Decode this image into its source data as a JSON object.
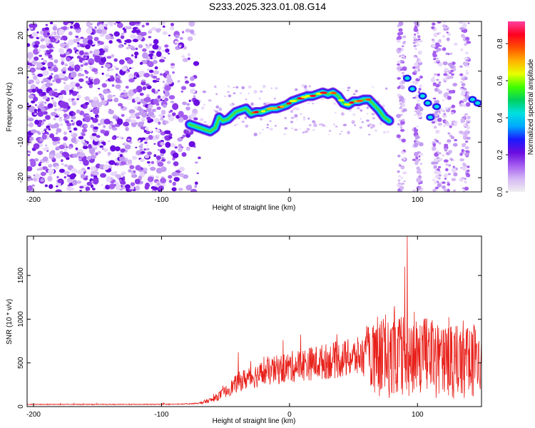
{
  "title": "S233.2025.323.01.08.G14",
  "chart_data": [
    {
      "type": "heatmap",
      "xlabel": "Height of straight line (km)",
      "ylabel": "Frequency (Hz)",
      "xlim": [
        -205,
        150
      ],
      "ylim": [
        -24,
        24
      ],
      "xticks": [
        -200,
        -100,
        0,
        100
      ],
      "yticks": [
        -20,
        -10,
        0,
        10,
        20
      ],
      "colorbar": {
        "label": "Normalized spectral amplitude",
        "range": [
          0,
          0.92
        ],
        "ticks": [
          0.0,
          0.2,
          0.4,
          0.6,
          0.8
        ],
        "tick_labels": [
          "0.0",
          "0.2",
          "0.4",
          "0.6",
          "0.8"
        ],
        "colors": [
          "#f0f0f0",
          "#d5b7f5",
          "#a55ef0",
          "#6a0de0",
          "#1a1aff",
          "#00a8ff",
          "#00e0e0",
          "#00d060",
          "#40ff00",
          "#e8ff00",
          "#ffb000",
          "#ff5000",
          "#ff0020",
          "#ff40a0"
        ]
      },
      "ridge": {
        "x": [
          -78,
          -74,
          -70,
          -66,
          -62,
          -58,
          -55,
          -52,
          -48,
          -45,
          -42,
          -38,
          -34,
          -30,
          -26,
          -22,
          -18,
          -14,
          -10,
          -6,
          -2,
          2,
          6,
          10,
          14,
          18,
          22,
          26,
          30,
          34,
          38,
          42,
          46,
          50,
          54,
          58,
          62,
          66,
          70,
          74,
          78
        ],
        "y": [
          -5,
          -5.5,
          -6,
          -6.5,
          -7,
          -6,
          -3,
          -4,
          -3.5,
          -2.5,
          -1.5,
          -1,
          -0.5,
          -2,
          -1.5,
          -1.5,
          -1,
          -0.5,
          -0.5,
          0,
          0.5,
          1.5,
          2,
          2.5,
          3,
          3,
          3.5,
          4,
          3.5,
          4,
          3,
          1,
          0.5,
          1.5,
          1.5,
          2,
          2,
          0.5,
          -1,
          -3,
          -4
        ]
      }
    },
    {
      "type": "line",
      "xlabel": "Height of straight line (km)",
      "ylabel": "SNR (10 * v/v)",
      "xlim": [
        -205,
        150
      ],
      "ylim": [
        0,
        1950
      ],
      "xticks": [
        -200,
        -100,
        0,
        100
      ],
      "yticks": [
        0,
        500,
        1000,
        1500
      ],
      "color": "#e8201a",
      "envelope": {
        "x": [
          -205,
          -150,
          -100,
          -80,
          -70,
          -60,
          -50,
          -40,
          -30,
          -20,
          -10,
          0,
          10,
          20,
          30,
          40,
          50,
          60,
          70,
          80,
          90,
          100,
          110,
          120,
          130,
          140,
          150
        ],
        "y": [
          25,
          25,
          25,
          30,
          40,
          80,
          170,
          280,
          340,
          380,
          420,
          450,
          480,
          500,
          520,
          540,
          560,
          580,
          610,
          640,
          650,
          640,
          620,
          600,
          580,
          560,
          560
        ]
      },
      "spikes": [
        {
          "x": -40,
          "y": 620
        },
        {
          "x": -20,
          "y": 570
        },
        {
          "x": 70,
          "y": 900
        },
        {
          "x": 82,
          "y": 1150
        },
        {
          "x": 86,
          "y": 1000
        },
        {
          "x": 90,
          "y": 1600
        },
        {
          "x": 92,
          "y": 1950
        },
        {
          "x": 105,
          "y": 1000
        },
        {
          "x": 120,
          "y": 880
        },
        {
          "x": 130,
          "y": 920
        },
        {
          "x": 144,
          "y": 940
        }
      ]
    }
  ]
}
